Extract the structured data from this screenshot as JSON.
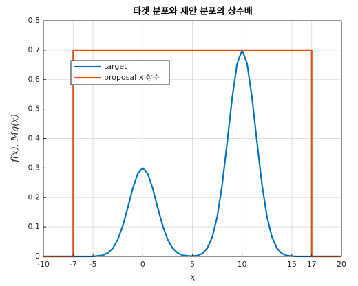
{
  "chart_data": {
    "type": "line",
    "title": "타겟 분포와 제안 분포의 상수배",
    "xlabel": "x",
    "ylabel": "f(x), Mg(x)",
    "xlim": [
      -10,
      20
    ],
    "ylim": [
      0,
      0.8
    ],
    "xticks": [
      -10,
      -7,
      -5,
      0,
      5,
      10,
      15,
      17,
      20
    ],
    "yticks": [
      0,
      0.1,
      0.2,
      0.3,
      0.4,
      0.5,
      0.6,
      0.7,
      0.8
    ],
    "grid": true,
    "legend": "upper left",
    "series": [
      {
        "name": "target",
        "color": "#0072bd",
        "x": [
          -10,
          -9.5,
          -9,
          -8.5,
          -8,
          -7.5,
          -7,
          -6.5,
          -6,
          -5.5,
          -5,
          -4.5,
          -4,
          -3.5,
          -3,
          -2.5,
          -2,
          -1.5,
          -1,
          -0.5,
          0,
          0.5,
          1,
          1.5,
          2,
          2.5,
          3,
          3.5,
          4,
          4.5,
          5,
          5.5,
          6,
          6.5,
          7,
          7.5,
          8,
          8.5,
          9,
          9.5,
          10,
          10.5,
          11,
          11.5,
          12,
          12.5,
          13,
          13.5,
          14,
          14.5,
          15,
          15.5,
          16,
          16.5,
          17,
          17.5,
          18,
          18.5,
          19,
          19.5,
          20
        ],
        "values": [
          0,
          0,
          0,
          0,
          0,
          0,
          0,
          0,
          0,
          0,
          0,
          0.002,
          0.004,
          0.012,
          0.028,
          0.058,
          0.105,
          0.166,
          0.231,
          0.281,
          0.3,
          0.281,
          0.231,
          0.166,
          0.105,
          0.058,
          0.028,
          0.012,
          0.004,
          0.002,
          0.001,
          0.003,
          0.01,
          0.028,
          0.066,
          0.135,
          0.244,
          0.387,
          0.538,
          0.655,
          0.7,
          0.655,
          0.538,
          0.387,
          0.244,
          0.135,
          0.066,
          0.028,
          0.01,
          0.003,
          0.001,
          0,
          0,
          0,
          0,
          0,
          0,
          0,
          0,
          0,
          0
        ]
      },
      {
        "name": "proposal x 상수",
        "color": "#d95319",
        "x": [
          -10,
          -7,
          -7,
          17,
          17,
          20
        ],
        "values": [
          0,
          0,
          0.7,
          0.7,
          0,
          0
        ]
      }
    ]
  }
}
